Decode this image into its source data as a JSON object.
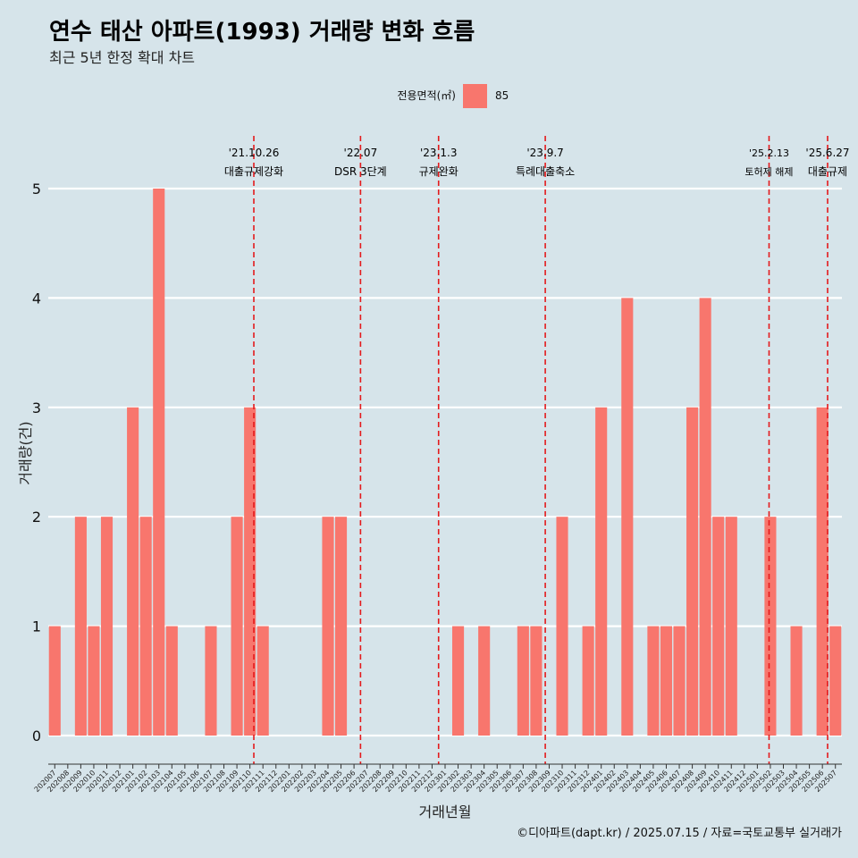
{
  "header": {
    "title": "연수 태산 아파트(1993) 거래량 변화 흐름",
    "subtitle": "최근 5년 한정 확대 차트"
  },
  "legend": {
    "title": "전용면적(㎡)",
    "items": [
      {
        "label": "85",
        "color": "#f8766d"
      }
    ]
  },
  "caption": "©디아파트(dapt.kr) / 2025.07.15 / 자료=국토교통부 실거래가",
  "colors": {
    "background": "#d6e4ea",
    "bar": "#f8766d",
    "grid": "#ffffff",
    "event_line": "#e41a1c"
  },
  "chart_data": {
    "type": "bar",
    "title": "연수 태산 아파트(1993) 거래량 변화 흐름",
    "subtitle": "최근 5년 한정 확대 차트",
    "xlabel": "거래년월",
    "ylabel": "거래량(건)",
    "ylim": [
      0,
      5
    ],
    "yticks": [
      0,
      1,
      2,
      3,
      4,
      5
    ],
    "grid": "horizontal",
    "legend_position": "top",
    "categories": [
      "202007",
      "202008",
      "202009",
      "202010",
      "202011",
      "202012",
      "202101",
      "202102",
      "202103",
      "202104",
      "202105",
      "202106",
      "202107",
      "202108",
      "202109",
      "202110",
      "202111",
      "202112",
      "202201",
      "202202",
      "202203",
      "202204",
      "202205",
      "202206",
      "202207",
      "202208",
      "202209",
      "202210",
      "202211",
      "202212",
      "202301",
      "202302",
      "202303",
      "202304",
      "202305",
      "202306",
      "202307",
      "202308",
      "202309",
      "202310",
      "202311",
      "202312",
      "202401",
      "202402",
      "202403",
      "202404",
      "202405",
      "202406",
      "202407",
      "202408",
      "202409",
      "202410",
      "202411",
      "202412",
      "202501",
      "202502",
      "202503",
      "202504",
      "202505",
      "202506",
      "202507"
    ],
    "series": [
      {
        "name": "85",
        "values": [
          1,
          0,
          2,
          1,
          2,
          0,
          3,
          2,
          5,
          1,
          0,
          0,
          1,
          0,
          2,
          3,
          1,
          0,
          0,
          0,
          0,
          2,
          2,
          0,
          0,
          0,
          0,
          0,
          0,
          0,
          0,
          1,
          0,
          1,
          0,
          0,
          1,
          1,
          0,
          2,
          0,
          1,
          3,
          0,
          4,
          0,
          1,
          1,
          1,
          3,
          4,
          2,
          2,
          0,
          0,
          2,
          0,
          1,
          0,
          3,
          1
        ]
      }
    ],
    "annotations": [
      {
        "date": "'21.10.26",
        "label": "대출규제강화",
        "x": "202110",
        "offset": 0.8
      },
      {
        "date": "'22.07",
        "label": "DSR 3단계",
        "x": "202207",
        "offset": 0.0
      },
      {
        "date": "'23.1.3",
        "label": "규제완화",
        "x": "202301",
        "offset": 0.0
      },
      {
        "date": "'23.9.7",
        "label": "특례대출축소",
        "x": "202309",
        "offset": 0.2
      },
      {
        "date": "'25.2.13",
        "label": "토허제 해제",
        "x": "202502",
        "offset": 0.4,
        "small": true
      },
      {
        "date": "'25.6.27",
        "label": "대출규제",
        "x": "202506",
        "offset": 0.9
      }
    ]
  }
}
